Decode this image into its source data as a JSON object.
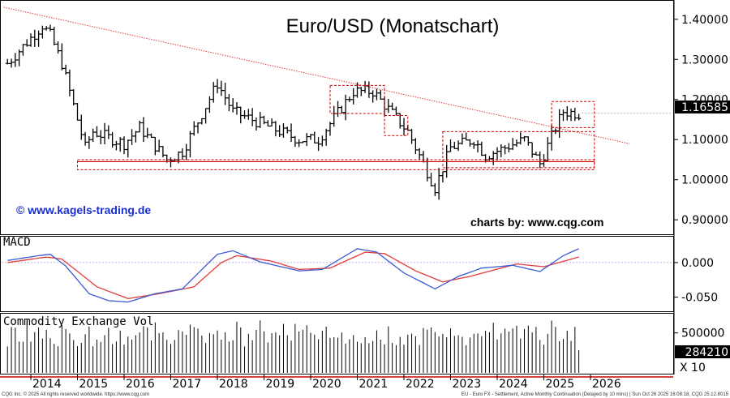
{
  "chart_data": {
    "type": "ohlc",
    "title": "Euro/USD (Monatschart)",
    "watermark_left": "© www.kagels-trading.de",
    "watermark_right": "charts by: www.cqg.com",
    "current_price_label": "1.16585",
    "current_price": 1.16585,
    "price_axis": {
      "ticks": [
        "1.40000",
        "1.30000",
        "1.20000",
        "1.10000",
        "1.00000",
        "0.90000"
      ],
      "ylim": [
        0.87,
        1.44
      ]
    },
    "years": [
      "2014",
      "2015",
      "2016",
      "2017",
      "2018",
      "2019",
      "2020",
      "2021",
      "2022",
      "2023",
      "2024",
      "2025",
      "2026"
    ],
    "anchors": [
      [
        "2013-07",
        1.29
      ],
      [
        "2014-04",
        1.385
      ],
      [
        "2014-06",
        1.36
      ],
      [
        "2014-09",
        1.29
      ],
      [
        "2015-03",
        1.08
      ],
      [
        "2015-05",
        1.12
      ],
      [
        "2016-01",
        1.09
      ],
      [
        "2016-05",
        1.13
      ],
      [
        "2016-12",
        1.05
      ],
      [
        "2017-04",
        1.07
      ],
      [
        "2018-01",
        1.24
      ],
      [
        "2018-05",
        1.17
      ],
      [
        "2019-10",
        1.1
      ],
      [
        "2020-03",
        1.1
      ],
      [
        "2020-12",
        1.22
      ],
      [
        "2021-05",
        1.22
      ],
      [
        "2022-02",
        1.12
      ],
      [
        "2022-09",
        0.98
      ],
      [
        "2023-01",
        1.08
      ],
      [
        "2023-07",
        1.1
      ],
      [
        "2023-10",
        1.06
      ],
      [
        "2024-08",
        1.1
      ],
      [
        "2024-12",
        1.04
      ],
      [
        "2025-04",
        1.13
      ],
      [
        "2025-06",
        1.17
      ],
      [
        "2025-10",
        1.165
      ]
    ],
    "trendline": {
      "start": [
        "2013-06",
        1.43
      ],
      "end": [
        "2026-11",
        1.09
      ]
    },
    "boxes": [
      {
        "from": "2015-01",
        "to": "2026-02",
        "top": 1.05,
        "bottom": 1.025
      },
      {
        "from": "2020-06",
        "to": "2021-08",
        "top": 1.235,
        "bottom": 1.165
      },
      {
        "from": "2021-08",
        "to": "2022-02",
        "top": 1.16,
        "bottom": 1.11
      },
      {
        "from": "2022-11",
        "to": "2026-02",
        "top": 1.12,
        "bottom": 1.03
      },
      {
        "from": "2025-03",
        "to": "2026-02",
        "top": 1.195,
        "bottom": 1.13
      }
    ],
    "support_line": 1.045,
    "macd": {
      "label": "MACD",
      "ticks": [
        "0.000",
        "-0.050"
      ],
      "ylim": [
        -0.068,
        0.035
      ],
      "macd_anchors": [
        [
          "2013-07",
          0.003
        ],
        [
          "2014-03",
          0.01
        ],
        [
          "2014-06",
          0.012
        ],
        [
          "2014-10",
          -0.005
        ],
        [
          "2015-04",
          -0.045
        ],
        [
          "2015-09",
          -0.055
        ],
        [
          "2016-02",
          -0.057
        ],
        [
          "2016-09",
          -0.045
        ],
        [
          "2017-04",
          -0.038
        ],
        [
          "2018-01",
          0.012
        ],
        [
          "2018-05",
          0.017
        ],
        [
          "2018-12",
          0.001
        ],
        [
          "2019-10",
          -0.012
        ],
        [
          "2020-04",
          -0.01
        ],
        [
          "2021-01",
          0.02
        ],
        [
          "2021-06",
          0.015
        ],
        [
          "2022-01",
          -0.015
        ],
        [
          "2022-09",
          -0.038
        ],
        [
          "2023-03",
          -0.02
        ],
        [
          "2023-09",
          -0.008
        ],
        [
          "2024-05",
          -0.004
        ],
        [
          "2024-12",
          -0.013
        ],
        [
          "2025-06",
          0.01
        ],
        [
          "2025-10",
          0.02
        ]
      ],
      "signal_anchors": [
        [
          "2013-07",
          0.0
        ],
        [
          "2014-05",
          0.008
        ],
        [
          "2014-09",
          0.005
        ],
        [
          "2015-06",
          -0.035
        ],
        [
          "2016-02",
          -0.052
        ],
        [
          "2016-10",
          -0.045
        ],
        [
          "2017-07",
          -0.035
        ],
        [
          "2018-02",
          0.0
        ],
        [
          "2018-06",
          0.01
        ],
        [
          "2019-03",
          0.002
        ],
        [
          "2019-10",
          -0.01
        ],
        [
          "2020-06",
          -0.008
        ],
        [
          "2021-03",
          0.015
        ],
        [
          "2021-08",
          0.013
        ],
        [
          "2022-04",
          -0.012
        ],
        [
          "2022-11",
          -0.028
        ],
        [
          "2023-06",
          -0.02
        ],
        [
          "2024-06",
          -0.002
        ],
        [
          "2025-01",
          -0.006
        ],
        [
          "2025-10",
          0.008
        ]
      ]
    },
    "volume": {
      "label": "Commodity Exchange Vol",
      "ticks": [
        "500000"
      ],
      "last_label": "284210",
      "last_value": 284210,
      "multiplier_label": "X 10",
      "ylim": [
        0,
        720000
      ]
    }
  },
  "footer": {
    "left": "CQG Inc. © 2025 All rights reserved worldwide. https://www.cqg.com",
    "right": "EU - Euro FX - Settlement, Active Monthly Continuation (Delayed by 10 mins) | Sun Oct 26 2025 16:08:18, CQG 25.12.8015"
  },
  "colors": {
    "bars": "#000000",
    "trendline": "#e23b3b",
    "boxes": "#cc0000",
    "macd_line": "#3b5bd6",
    "signal_line": "#e23b3b",
    "watermark": "#1a2fd0"
  }
}
